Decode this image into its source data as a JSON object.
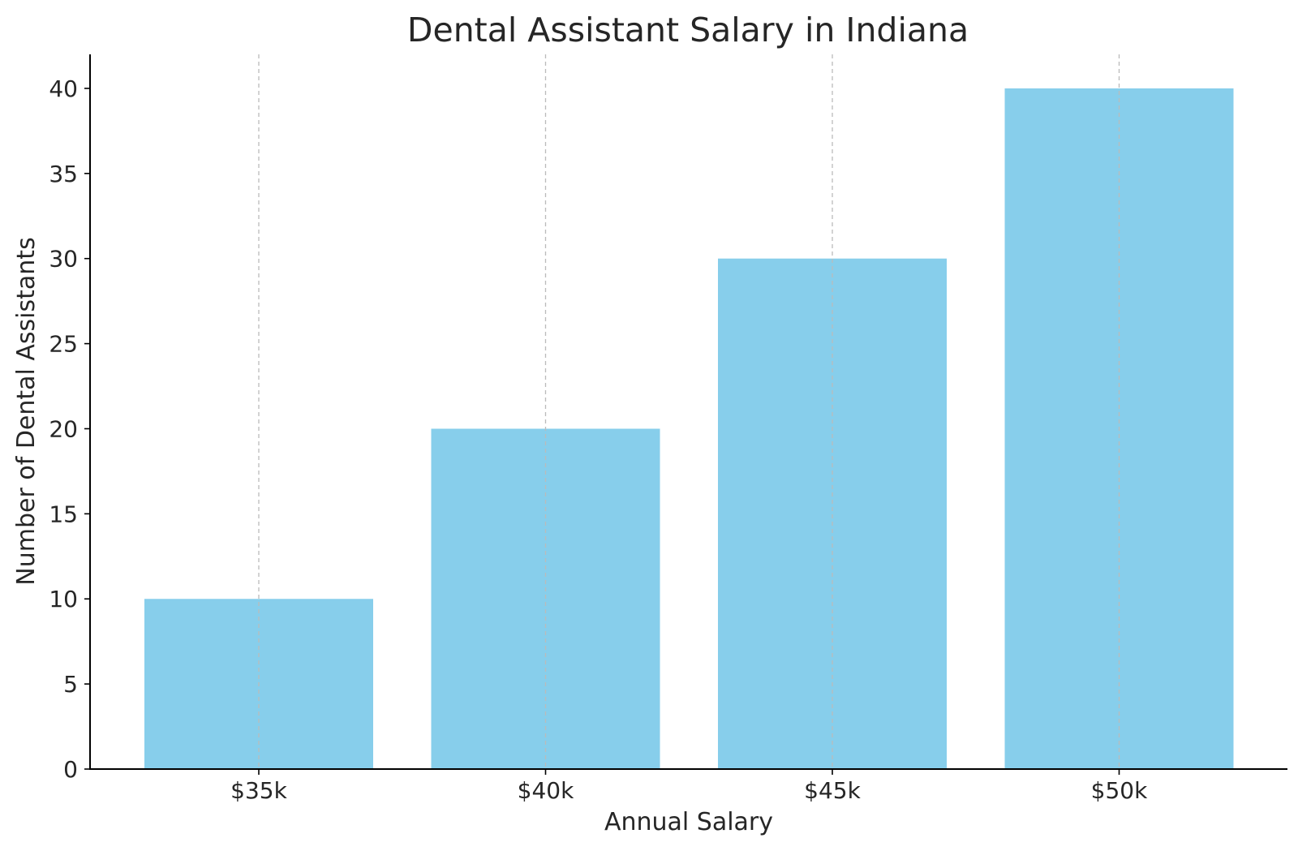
{
  "chart_data": {
    "type": "bar",
    "title": "Dental Assistant Salary in Indiana",
    "xlabel": "Annual Salary",
    "ylabel": "Number of Dental Assistants",
    "categories": [
      "$35k",
      "$40k",
      "$45k",
      "$50k"
    ],
    "values": [
      10,
      20,
      30,
      40
    ],
    "ylim": [
      0,
      42
    ],
    "yticks": [
      0,
      5,
      10,
      15,
      20,
      25,
      30,
      35,
      40
    ],
    "grid": "vertical-dashed",
    "bar_color": "#87CEEB",
    "grid_color": "#bbbbbb",
    "text_color": "#262626"
  }
}
